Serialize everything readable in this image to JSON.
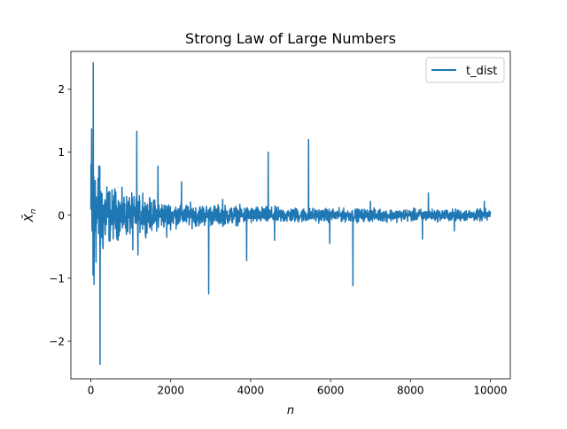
{
  "chart_data": {
    "type": "line",
    "title": "Strong Law of Large Numbers",
    "xlabel": "n",
    "ylabel": "X̄_n",
    "ylabel_display": {
      "base": "X̄",
      "sub": "n"
    },
    "xlim": [
      -500,
      10500
    ],
    "ylim": [
      -2.6,
      2.6
    ],
    "x_ticks": [
      0,
      2000,
      4000,
      6000,
      8000,
      10000
    ],
    "x_tick_labels": [
      "0",
      "2000",
      "4000",
      "6000",
      "8000",
      "10000"
    ],
    "y_ticks": [
      -2,
      -1,
      0,
      1,
      2
    ],
    "y_tick_labels": [
      "−2",
      "−1",
      "0",
      "1",
      "2"
    ],
    "grid": false,
    "legend_position": "top-right",
    "series": [
      {
        "name": "t_dist",
        "color": "#1f77b4",
        "n_points": 10000,
        "baseline": 0,
        "envelope": [
          {
            "x": 0,
            "halfwidth": 0.9
          },
          {
            "x": 500,
            "halfwidth": 0.35
          },
          {
            "x": 1000,
            "halfwidth": 0.28
          },
          {
            "x": 2000,
            "halfwidth": 0.17
          },
          {
            "x": 4000,
            "halfwidth": 0.12
          },
          {
            "x": 6000,
            "halfwidth": 0.09
          },
          {
            "x": 8000,
            "halfwidth": 0.085
          },
          {
            "x": 10000,
            "halfwidth": 0.08
          }
        ],
        "spikes": [
          {
            "x": 20,
            "y": 1.37
          },
          {
            "x": 55,
            "y": -0.95
          },
          {
            "x": 60,
            "y": 2.42
          },
          {
            "x": 80,
            "y": -1.1
          },
          {
            "x": 110,
            "y": 0.55
          },
          {
            "x": 200,
            "y": 0.78
          },
          {
            "x": 230,
            "y": -2.37
          },
          {
            "x": 300,
            "y": -0.5
          },
          {
            "x": 400,
            "y": 0.45
          },
          {
            "x": 600,
            "y": 0.42
          },
          {
            "x": 1050,
            "y": -0.55
          },
          {
            "x": 1150,
            "y": 1.33
          },
          {
            "x": 1180,
            "y": -0.63
          },
          {
            "x": 1300,
            "y": 0.35
          },
          {
            "x": 1680,
            "y": 0.78
          },
          {
            "x": 1900,
            "y": -0.35
          },
          {
            "x": 2270,
            "y": 0.53
          },
          {
            "x": 2950,
            "y": -1.25
          },
          {
            "x": 3300,
            "y": 0.25
          },
          {
            "x": 3900,
            "y": -0.72
          },
          {
            "x": 4440,
            "y": 1.0
          },
          {
            "x": 4600,
            "y": -0.4
          },
          {
            "x": 5450,
            "y": 1.2
          },
          {
            "x": 5980,
            "y": -0.45
          },
          {
            "x": 6560,
            "y": -1.12
          },
          {
            "x": 7000,
            "y": 0.22
          },
          {
            "x": 8300,
            "y": -0.38
          },
          {
            "x": 8450,
            "y": 0.35
          },
          {
            "x": 9100,
            "y": -0.25
          },
          {
            "x": 9850,
            "y": 0.22
          }
        ]
      }
    ]
  }
}
